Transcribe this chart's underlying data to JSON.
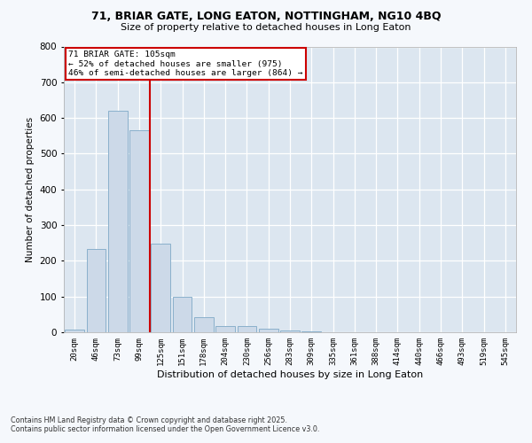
{
  "title1": "71, BRIAR GATE, LONG EATON, NOTTINGHAM, NG10 4BQ",
  "title2": "Size of property relative to detached houses in Long Eaton",
  "xlabel": "Distribution of detached houses by size in Long Eaton",
  "ylabel": "Number of detached properties",
  "categories": [
    "20sqm",
    "46sqm",
    "73sqm",
    "99sqm",
    "125sqm",
    "151sqm",
    "178sqm",
    "204sqm",
    "230sqm",
    "256sqm",
    "283sqm",
    "309sqm",
    "335sqm",
    "361sqm",
    "388sqm",
    "414sqm",
    "440sqm",
    "466sqm",
    "493sqm",
    "519sqm",
    "545sqm"
  ],
  "values": [
    8,
    232,
    620,
    565,
    248,
    98,
    43,
    18,
    18,
    10,
    5,
    2,
    1,
    0,
    0,
    0,
    0,
    0,
    0,
    0,
    0
  ],
  "bar_color": "#ccd9e8",
  "bar_edge_color": "#8ab0cc",
  "background_color": "#dce6f0",
  "grid_color": "#ffffff",
  "fig_background": "#f5f8fc",
  "vline_x": 3,
  "vline_color": "#cc0000",
  "annotation_text": "71 BRIAR GATE: 105sqm\n← 52% of detached houses are smaller (975)\n46% of semi-detached houses are larger (864) →",
  "annotation_box_color": "#cc0000",
  "footer1": "Contains HM Land Registry data © Crown copyright and database right 2025.",
  "footer2": "Contains public sector information licensed under the Open Government Licence v3.0.",
  "ylim": [
    0,
    800
  ],
  "yticks": [
    0,
    100,
    200,
    300,
    400,
    500,
    600,
    700,
    800
  ]
}
